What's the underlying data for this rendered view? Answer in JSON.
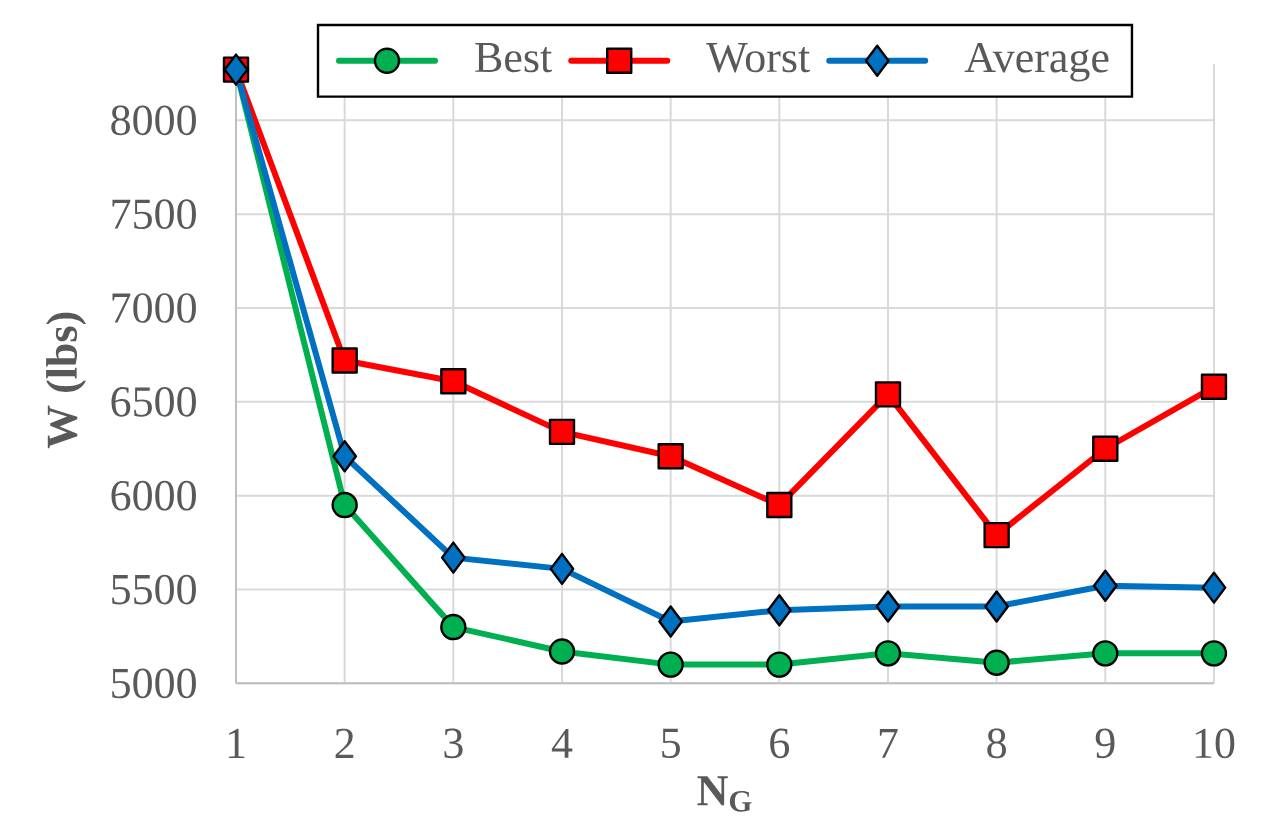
{
  "chart_data": {
    "type": "line",
    "xlabel": "N$_{G}$",
    "ylabel": "W (lbs)",
    "x": [
      1,
      2,
      3,
      4,
      5,
      6,
      7,
      8,
      9,
      10
    ],
    "xlim": [
      1,
      10
    ],
    "xticks": [
      1,
      2,
      3,
      4,
      5,
      6,
      7,
      8,
      9,
      10
    ],
    "ylim": [
      5000,
      8300
    ],
    "yticks": [
      5000,
      5500,
      6000,
      6500,
      7000,
      7500,
      8000
    ],
    "grid": true,
    "legend": "top",
    "line_style": "solid",
    "series": [
      {
        "name": "Best",
        "color": "#00b050",
        "marker": "circle",
        "values": [
          8270,
          5950,
          5300,
          5170,
          5100,
          5100,
          5160,
          5110,
          5160,
          5160
        ]
      },
      {
        "name": "Worst",
        "color": "#ff0000",
        "marker": "square",
        "values": [
          8270,
          6720,
          6610,
          6340,
          6210,
          5950,
          6540,
          5790,
          6250,
          6580
        ]
      },
      {
        "name": "Average",
        "color": "#0070c0",
        "marker": "diamond",
        "values": [
          8270,
          6210,
          5670,
          5610,
          5330,
          5390,
          5410,
          5410,
          5520,
          5510
        ]
      }
    ]
  }
}
